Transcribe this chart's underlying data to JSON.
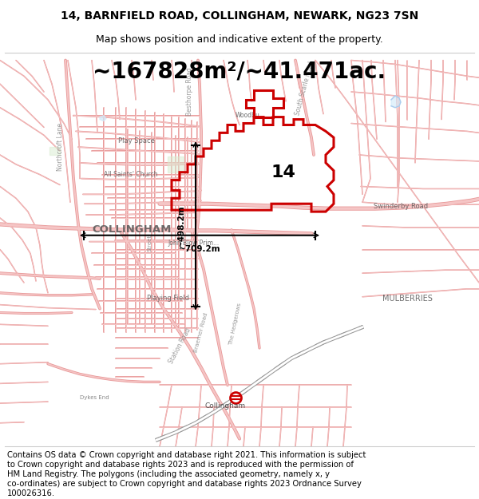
{
  "title_line1": "14, BARNFIELD ROAD, COLLINGHAM, NEWARK, NG23 7SN",
  "title_line2": "Map shows position and indicative extent of the property.",
  "area_text": "~167828m²/~41.471ac.",
  "label_number": "14",
  "dim_vertical": "~498.2m",
  "dim_horizontal": "~709.2m",
  "footer_lines": [
    "Contains OS data © Crown copyright and database right 2021. This information is subject",
    "to Crown copyright and database rights 2023 and is reproduced with the permission of",
    "HM Land Registry. The polygons (including the associated geometry, namely x, y",
    "co-ordinates) are subject to Crown copyright and database rights 2023 Ordnance Survey",
    "100026316."
  ],
  "map_bg": "#ffffff",
  "road_fill": "#f5c5c5",
  "road_edge": "#e89898",
  "road_thin_fill": "#f5c5c5",
  "road_thin_edge": "#e89898",
  "prop_color": "#cc0000",
  "text_gray": "#888888",
  "text_dark": "#555555",
  "fig_w": 6.0,
  "fig_h": 6.25,
  "title_fs": 10,
  "subtitle_fs": 9,
  "area_fs": 20,
  "label_fs": 16,
  "map_label_fs": 6.0,
  "footer_fs": 7.2
}
